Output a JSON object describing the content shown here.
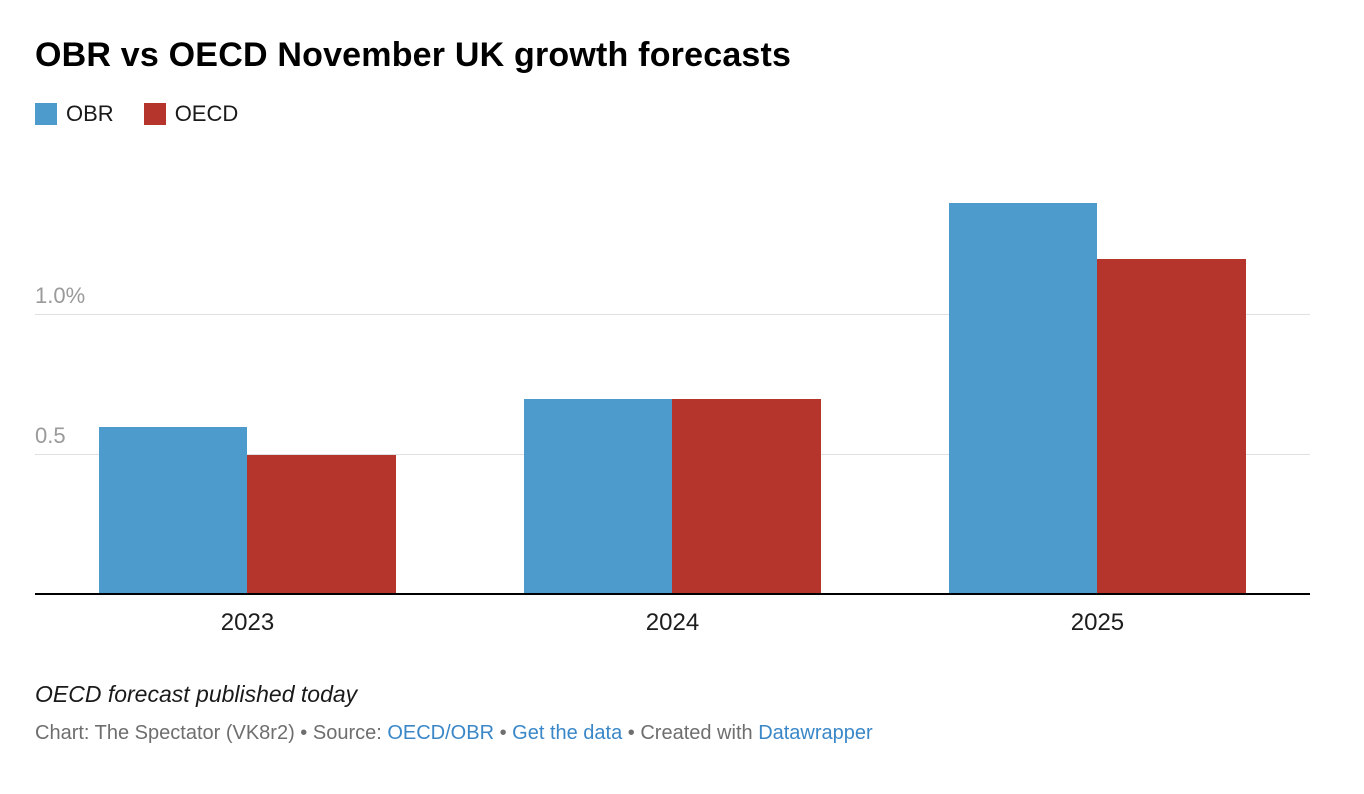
{
  "title": "OBR vs OECD November UK growth forecasts",
  "chart_data": {
    "type": "bar",
    "title": "OBR vs OECD November UK growth forecasts",
    "categories": [
      "2023",
      "2024",
      "2025"
    ],
    "series": [
      {
        "name": "OBR",
        "color": "#4d9bcd",
        "values": [
          0.6,
          0.7,
          1.4
        ]
      },
      {
        "name": "OECD",
        "color": "#b5342c",
        "values": [
          0.5,
          0.7,
          1.2
        ]
      }
    ],
    "xlabel": "",
    "ylabel": "",
    "ylim": [
      0,
      1.5
    ],
    "y_ticks": [
      {
        "value": 0.5,
        "label": "0.5"
      },
      {
        "value": 1.0,
        "label": "1.0%"
      }
    ],
    "grid": true,
    "legend_position": "top-left"
  },
  "footer": {
    "note": "OECD forecast published today",
    "byline_prefix": "Chart: The Spectator (VK8r2) • Source: ",
    "source_link": "OECD/OBR",
    "sep1": " • ",
    "get_data_link": "Get the data",
    "sep2": " • Created with ",
    "tool_link": "Datawrapper"
  }
}
